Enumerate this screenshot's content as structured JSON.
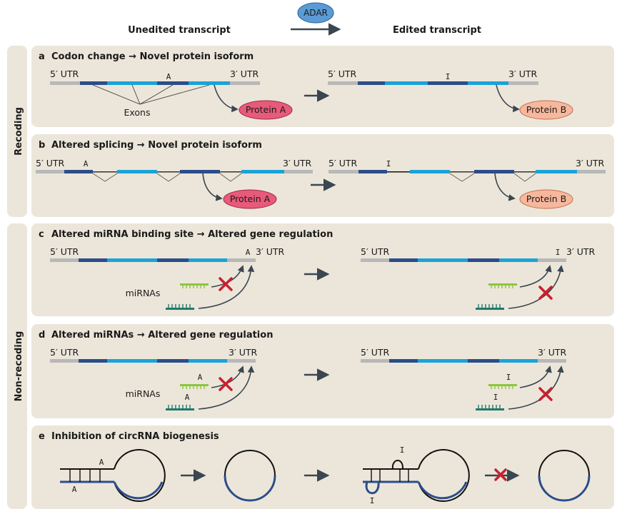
{
  "header": {
    "unedited": "Unedited transcript",
    "edited": "Edited transcript",
    "enzyme": "ADAR"
  },
  "side_labels": {
    "recoding": "Recoding",
    "non_recoding": "Non-recoding"
  },
  "panels": {
    "a": {
      "letter": "a",
      "title": "Codon change → Novel protein isoform"
    },
    "b": {
      "letter": "b",
      "title": "Altered splicing → Novel protein isoform"
    },
    "c": {
      "letter": "c",
      "title": "Altered miRNA binding site → Altered gene regulation"
    },
    "d": {
      "letter": "d",
      "title": "Altered miRNAs → Altered gene regulation"
    },
    "e": {
      "letter": "e",
      "title": "Inhibition of circRNA biogenesis"
    }
  },
  "labels": {
    "utr5": "5′ UTR",
    "utr3": "3′ UTR",
    "exons": "Exons",
    "mirnas": "miRNAs",
    "nuc_a": "A",
    "nuc_i": "I"
  },
  "proteins": {
    "a": "Protein A",
    "b": "Protein B"
  },
  "colors": {
    "utr_gray": "#b8b8b8",
    "exon_dark": "#2b4d8a",
    "exon_light": "#1aa3d9",
    "protein_a": "#e85a7a",
    "protein_b": "#f7b79c",
    "adar": "#5b9bd5",
    "mirna_light": "#8cc63f",
    "mirna_dark": "#1f7a6e",
    "block_x": "#c8202f",
    "panel_bg": "#ece6da"
  }
}
